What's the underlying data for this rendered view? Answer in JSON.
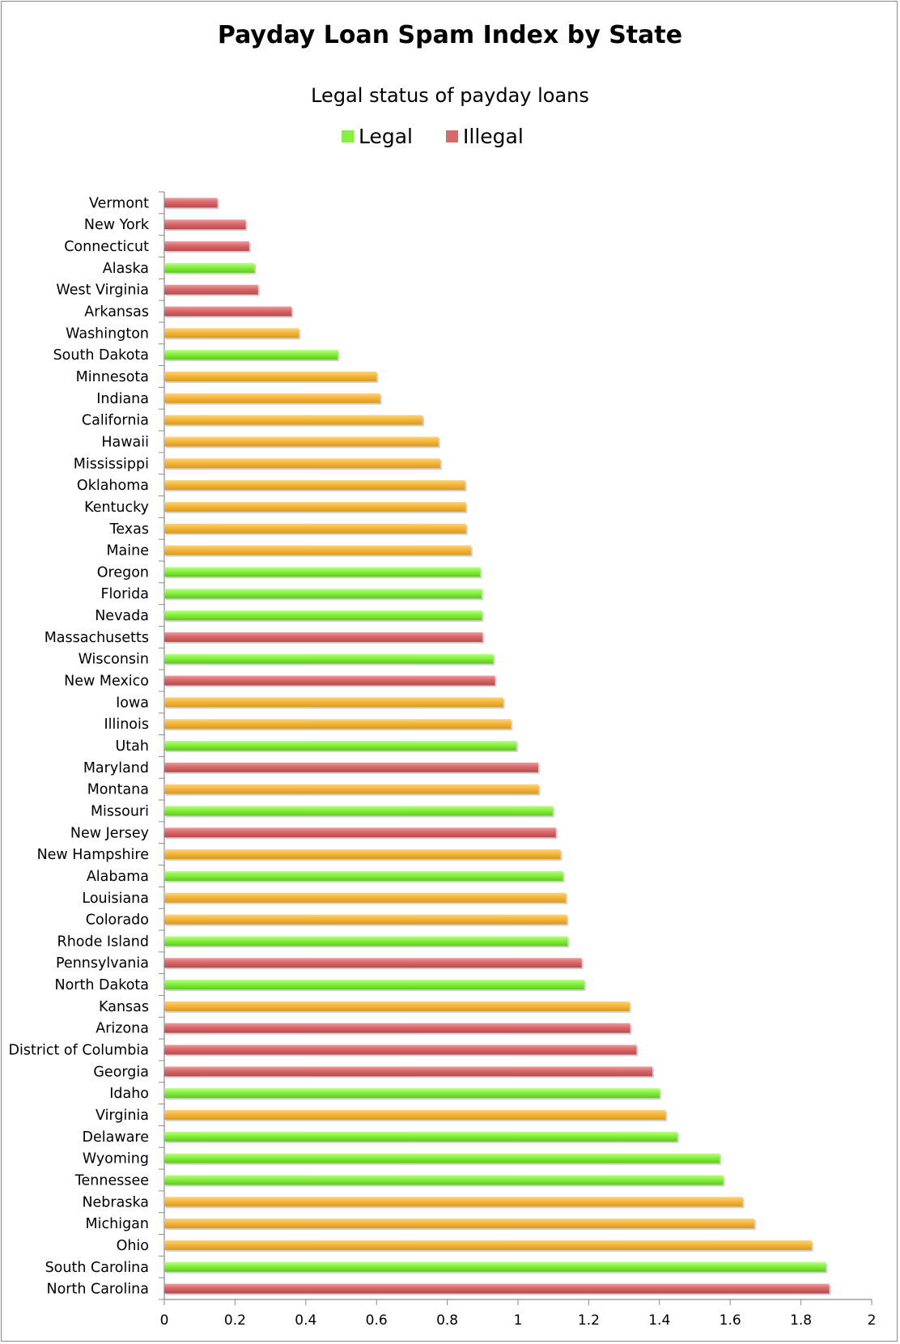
{
  "chart_data": {
    "type": "bar",
    "orientation": "horizontal",
    "title": "Payday Loan Spam Index by State",
    "legend": {
      "title": "Legal status of payday loans",
      "placement": "top",
      "entries": [
        {
          "name": "Legal",
          "color": "#86f03c"
        },
        {
          "name": "Illegal",
          "color": "#d9686a"
        }
      ]
    },
    "colors": {
      "legal": "#86f03c",
      "illegal": "#d9686a",
      "other": "#f4b73a"
    },
    "xlim": [
      0,
      2
    ],
    "xticks": [
      "0",
      "0.2",
      "0.4",
      "0.6",
      "0.8",
      "1",
      "1.2",
      "1.4",
      "1.6",
      "1.8",
      "2"
    ],
    "grid": false,
    "categories": [
      "Vermont",
      "New York",
      "Connecticut",
      "Alaska",
      "West Virginia",
      "Arkansas",
      "Washington",
      "South Dakota",
      "Minnesota",
      "Indiana",
      "California",
      "Hawaii",
      "Mississippi",
      "Oklahoma",
      "Kentucky",
      "Texas",
      "Maine",
      "Oregon",
      "Florida",
      "Nevada",
      "Massachusetts",
      "Wisconsin",
      "New Mexico",
      "Iowa",
      "Illinois",
      "Utah",
      "Maryland",
      "Montana",
      "Missouri",
      "New Jersey",
      "New Hampshire",
      "Alabama",
      "Louisiana",
      "Colorado",
      "Rhode Island",
      "Pennsylvania",
      "North Dakota",
      "Kansas",
      "Arizona",
      "District of Columbia",
      "Georgia",
      "Idaho",
      "Virginia",
      "Delaware",
      "Wyoming",
      "Tennessee",
      "Nebraska",
      "Michigan",
      "Ohio",
      "South Carolina",
      "North Carolina"
    ],
    "values": [
      0.15,
      0.23,
      0.24,
      0.255,
      0.265,
      0.36,
      0.38,
      0.49,
      0.6,
      0.61,
      0.73,
      0.775,
      0.78,
      0.85,
      0.852,
      0.853,
      0.867,
      0.893,
      0.897,
      0.898,
      0.9,
      0.93,
      0.935,
      0.958,
      0.98,
      0.995,
      1.057,
      1.058,
      1.098,
      1.107,
      1.12,
      1.127,
      1.135,
      1.138,
      1.14,
      1.18,
      1.187,
      1.315,
      1.317,
      1.335,
      1.38,
      1.4,
      1.417,
      1.45,
      1.57,
      1.58,
      1.635,
      1.668,
      1.83,
      1.87,
      1.88
    ],
    "status": [
      "illegal",
      "illegal",
      "illegal",
      "legal",
      "illegal",
      "illegal",
      "other",
      "legal",
      "other",
      "other",
      "other",
      "other",
      "other",
      "other",
      "other",
      "other",
      "other",
      "legal",
      "legal",
      "legal",
      "illegal",
      "legal",
      "illegal",
      "other",
      "other",
      "legal",
      "illegal",
      "other",
      "legal",
      "illegal",
      "other",
      "legal",
      "other",
      "other",
      "legal",
      "illegal",
      "legal",
      "other",
      "illegal",
      "illegal",
      "illegal",
      "legal",
      "other",
      "legal",
      "legal",
      "legal",
      "other",
      "other",
      "other",
      "legal",
      "illegal"
    ]
  }
}
